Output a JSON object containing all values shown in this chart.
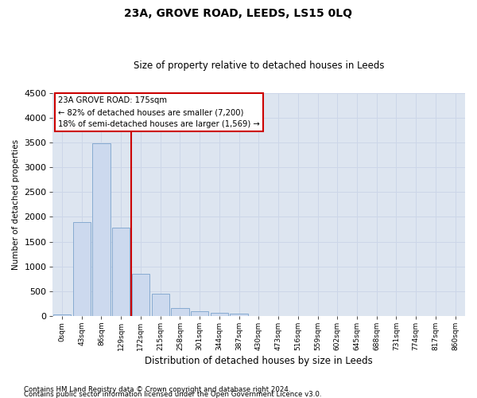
{
  "title": "23A, GROVE ROAD, LEEDS, LS15 0LQ",
  "subtitle": "Size of property relative to detached houses in Leeds",
  "xlabel": "Distribution of detached houses by size in Leeds",
  "ylabel": "Number of detached properties",
  "footer_line1": "Contains HM Land Registry data © Crown copyright and database right 2024.",
  "footer_line2": "Contains public sector information licensed under the Open Government Licence v3.0.",
  "bar_labels": [
    "0sqm",
    "43sqm",
    "86sqm",
    "129sqm",
    "172sqm",
    "215sqm",
    "258sqm",
    "301sqm",
    "344sqm",
    "387sqm",
    "430sqm",
    "473sqm",
    "516sqm",
    "559sqm",
    "602sqm",
    "645sqm",
    "688sqm",
    "731sqm",
    "774sqm",
    "817sqm",
    "860sqm"
  ],
  "bar_values": [
    30,
    1900,
    3480,
    1780,
    850,
    450,
    160,
    90,
    65,
    50,
    0,
    0,
    0,
    0,
    0,
    0,
    0,
    0,
    0,
    0,
    0
  ],
  "bar_color": "#ccd9ee",
  "bar_edge_color": "#7ba3cc",
  "vline_x_index": 4,
  "vline_color": "#cc0000",
  "ylim": [
    0,
    4500
  ],
  "yticks": [
    0,
    500,
    1000,
    1500,
    2000,
    2500,
    3000,
    3500,
    4000,
    4500
  ],
  "annotation_text": "23A GROVE ROAD: 175sqm\n← 82% of detached houses are smaller (7,200)\n18% of semi-detached houses are larger (1,569) →",
  "annotation_box_color": "#ffffff",
  "annotation_box_edge": "#cc0000",
  "grid_color": "#ccd6e8",
  "bg_color": "#dde5f0"
}
